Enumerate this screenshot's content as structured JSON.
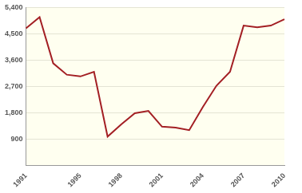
{
  "chart_data": {
    "type": "line",
    "categories": [
      "1991",
      null,
      null,
      null,
      "1995",
      null,
      null,
      "1998",
      null,
      null,
      "2001",
      null,
      null,
      "2004",
      null,
      null,
      "2007",
      null,
      null,
      "2010"
    ],
    "values": [
      4690,
      5070,
      3490,
      3100,
      3040,
      3200,
      980,
      1400,
      1780,
      1860,
      1320,
      1290,
      1200,
      1990,
      2720,
      3200,
      4780,
      4720,
      4780,
      5000
    ],
    "color": "#a31f24",
    "ylim": [
      0,
      5400
    ],
    "yticks": [
      900,
      {
        "value": 1800,
        "label": "1,800"
      },
      {
        "value": 2700,
        "label": "2,700"
      },
      {
        "value": 3600,
        "label": "3,600"
      },
      {
        "value": 4500,
        "label": "4,500"
      },
      {
        "value": 5400,
        "label": "5,400"
      }
    ],
    "grid": true
  }
}
